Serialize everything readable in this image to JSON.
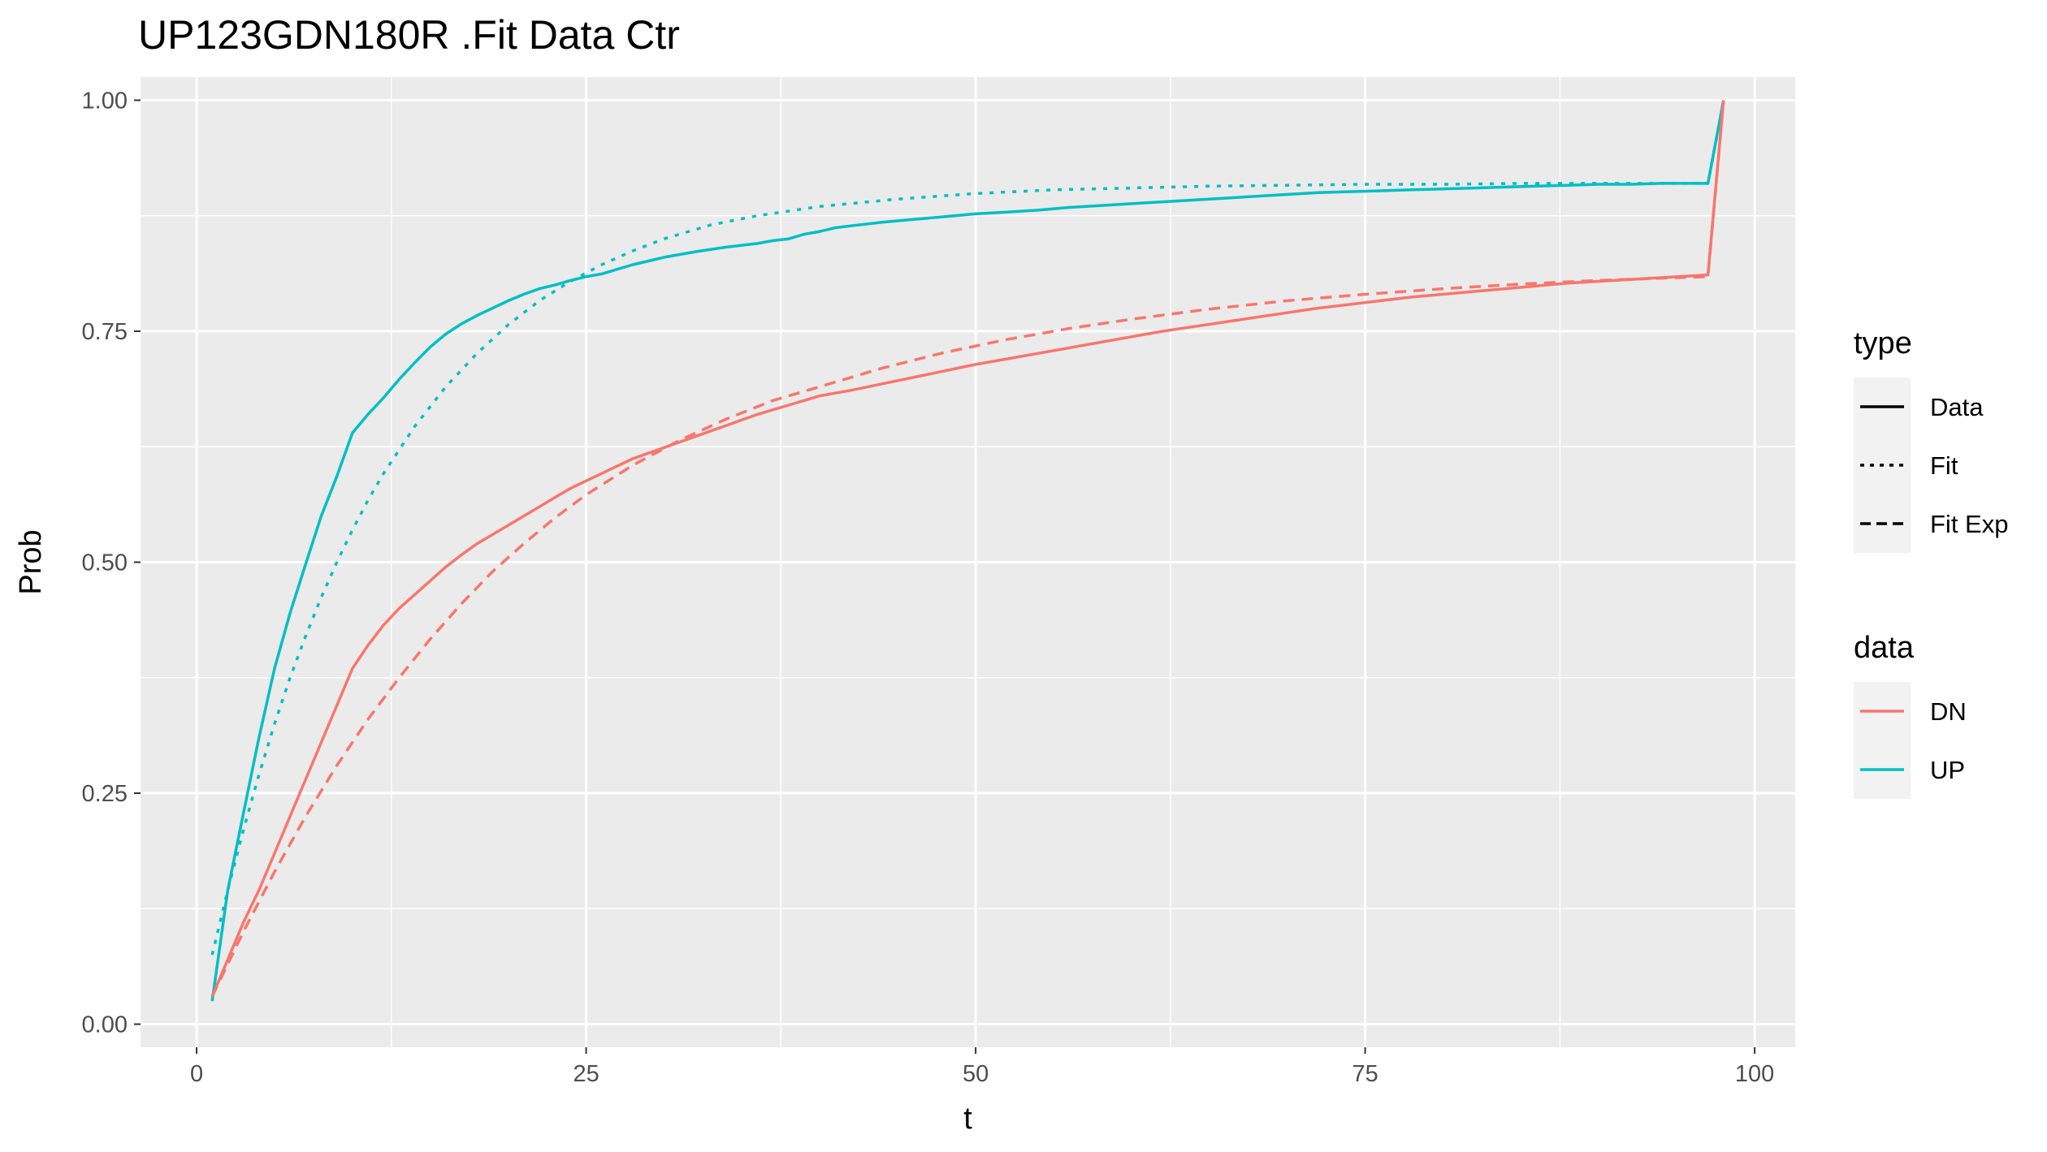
{
  "chart_data": {
    "type": "line",
    "title": "UP123GDN180R .Fit Data Ctr",
    "xlabel": "t",
    "ylabel": "Prob",
    "xlim": [
      -3.6,
      102.6
    ],
    "ylim": [
      -0.025,
      1.025
    ],
    "x_ticks": [
      0,
      25,
      50,
      75,
      100
    ],
    "x_tick_labels": [
      "0",
      "25",
      "50",
      "75",
      "100"
    ],
    "y_ticks": [
      0,
      0.25,
      0.5,
      0.75,
      1
    ],
    "y_tick_labels": [
      "0.00",
      "0.25",
      "0.50",
      "0.75",
      "1.00"
    ],
    "grid": true,
    "legend_position": "right",
    "legend_type_title": "type",
    "legend_type_entries": [
      {
        "label": "Data",
        "dash": "solid"
      },
      {
        "label": "Fit",
        "dash": "dotted"
      },
      {
        "label": "Fit Exp",
        "dash": "dashed"
      }
    ],
    "legend_data_title": "data",
    "legend_data_entries": [
      {
        "label": "DN",
        "color": "#F8766D"
      },
      {
        "label": "UP",
        "color": "#00BFC4"
      }
    ],
    "series": [
      {
        "data": "UP",
        "type": "Data",
        "color": "#00BFC4",
        "dash": "solid",
        "x": [
          1,
          2,
          3,
          4,
          5,
          6,
          7,
          8,
          9,
          10,
          11,
          12,
          13,
          14,
          15,
          16,
          17,
          18,
          19,
          20,
          21,
          22,
          23,
          24,
          25,
          26,
          27,
          28,
          29,
          30,
          32,
          34,
          36,
          37,
          38,
          39,
          40,
          41,
          42,
          44,
          46,
          48,
          50,
          52,
          54,
          56,
          58,
          60,
          62,
          64,
          66,
          68,
          70,
          72,
          74,
          76,
          78,
          80,
          82,
          84,
          86,
          88,
          90,
          92,
          94,
          96,
          97,
          98
        ],
        "y": [
          0.025,
          0.145,
          0.228,
          0.31,
          0.385,
          0.445,
          0.498,
          0.55,
          0.593,
          0.64,
          0.66,
          0.678,
          0.698,
          0.716,
          0.733,
          0.747,
          0.758,
          0.767,
          0.775,
          0.783,
          0.79,
          0.796,
          0.8,
          0.805,
          0.809,
          0.812,
          0.817,
          0.822,
          0.826,
          0.83,
          0.836,
          0.841,
          0.845,
          0.848,
          0.85,
          0.855,
          0.858,
          0.862,
          0.864,
          0.868,
          0.871,
          0.874,
          0.877,
          0.879,
          0.881,
          0.884,
          0.886,
          0.888,
          0.89,
          0.892,
          0.894,
          0.896,
          0.898,
          0.9,
          0.901,
          0.902,
          0.903,
          0.904,
          0.905,
          0.906,
          0.907,
          0.908,
          0.909,
          0.909,
          0.91,
          0.91,
          0.91,
          1.0
        ]
      },
      {
        "data": "UP",
        "type": "Fit",
        "color": "#00BFC4",
        "dash": "dotted",
        "x": [
          1,
          2,
          3,
          4,
          5,
          6,
          7,
          8,
          9,
          10,
          11,
          12,
          14,
          16,
          18,
          20,
          22,
          24,
          26,
          28,
          30,
          33,
          36,
          40,
          45,
          50,
          55,
          60,
          65,
          70,
          75,
          80,
          85,
          90,
          95,
          97,
          98
        ],
        "y": [
          0.075,
          0.145,
          0.21,
          0.27,
          0.325,
          0.375,
          0.42,
          0.462,
          0.5,
          0.535,
          0.567,
          0.596,
          0.647,
          0.69,
          0.726,
          0.757,
          0.783,
          0.804,
          0.822,
          0.837,
          0.85,
          0.865,
          0.875,
          0.885,
          0.893,
          0.899,
          0.903,
          0.905,
          0.907,
          0.908,
          0.909,
          0.909,
          0.91,
          0.91,
          0.91,
          0.91,
          1.0
        ]
      },
      {
        "data": "DN",
        "type": "Data",
        "color": "#F8766D",
        "dash": "solid",
        "x": [
          1,
          2,
          3,
          4,
          5,
          6,
          7,
          8,
          9,
          10,
          11,
          12,
          13,
          14,
          15,
          16,
          17,
          18,
          19,
          20,
          21,
          22,
          23,
          24,
          25,
          26,
          27,
          28,
          29,
          30,
          31,
          32,
          33,
          34,
          35,
          36,
          37,
          38,
          39,
          40,
          41,
          42,
          44,
          46,
          48,
          50,
          52,
          54,
          56,
          58,
          60,
          62,
          64,
          66,
          68,
          70,
          72,
          74,
          76,
          78,
          80,
          82,
          84,
          86,
          88,
          90,
          92,
          94,
          96,
          97,
          98
        ],
        "y": [
          0.03,
          0.07,
          0.11,
          0.145,
          0.185,
          0.225,
          0.265,
          0.305,
          0.345,
          0.385,
          0.41,
          0.432,
          0.45,
          0.465,
          0.48,
          0.495,
          0.508,
          0.52,
          0.53,
          0.54,
          0.55,
          0.56,
          0.57,
          0.58,
          0.588,
          0.596,
          0.604,
          0.612,
          0.618,
          0.624,
          0.63,
          0.636,
          0.642,
          0.648,
          0.654,
          0.66,
          0.665,
          0.67,
          0.675,
          0.68,
          0.683,
          0.686,
          0.693,
          0.7,
          0.707,
          0.714,
          0.72,
          0.726,
          0.732,
          0.738,
          0.744,
          0.75,
          0.755,
          0.76,
          0.765,
          0.77,
          0.775,
          0.779,
          0.783,
          0.787,
          0.79,
          0.793,
          0.796,
          0.799,
          0.802,
          0.804,
          0.806,
          0.808,
          0.81,
          0.811,
          1.0
        ]
      },
      {
        "data": "DN",
        "type": "Fit Exp",
        "color": "#F8766D",
        "dash": "dashed",
        "x": [
          1,
          3,
          5,
          7,
          9,
          11,
          13,
          15,
          17,
          19,
          21,
          23,
          25,
          28,
          31,
          34,
          37,
          40,
          44,
          48,
          52,
          56,
          60,
          65,
          70,
          75,
          80,
          85,
          90,
          95,
          97,
          98
        ],
        "y": [
          0.03,
          0.1,
          0.165,
          0.225,
          0.28,
          0.33,
          0.375,
          0.417,
          0.455,
          0.49,
          0.52,
          0.548,
          0.573,
          0.605,
          0.632,
          0.655,
          0.675,
          0.69,
          0.71,
          0.727,
          0.741,
          0.753,
          0.763,
          0.774,
          0.783,
          0.79,
          0.796,
          0.801,
          0.805,
          0.808,
          0.809,
          1.0
        ]
      }
    ]
  }
}
